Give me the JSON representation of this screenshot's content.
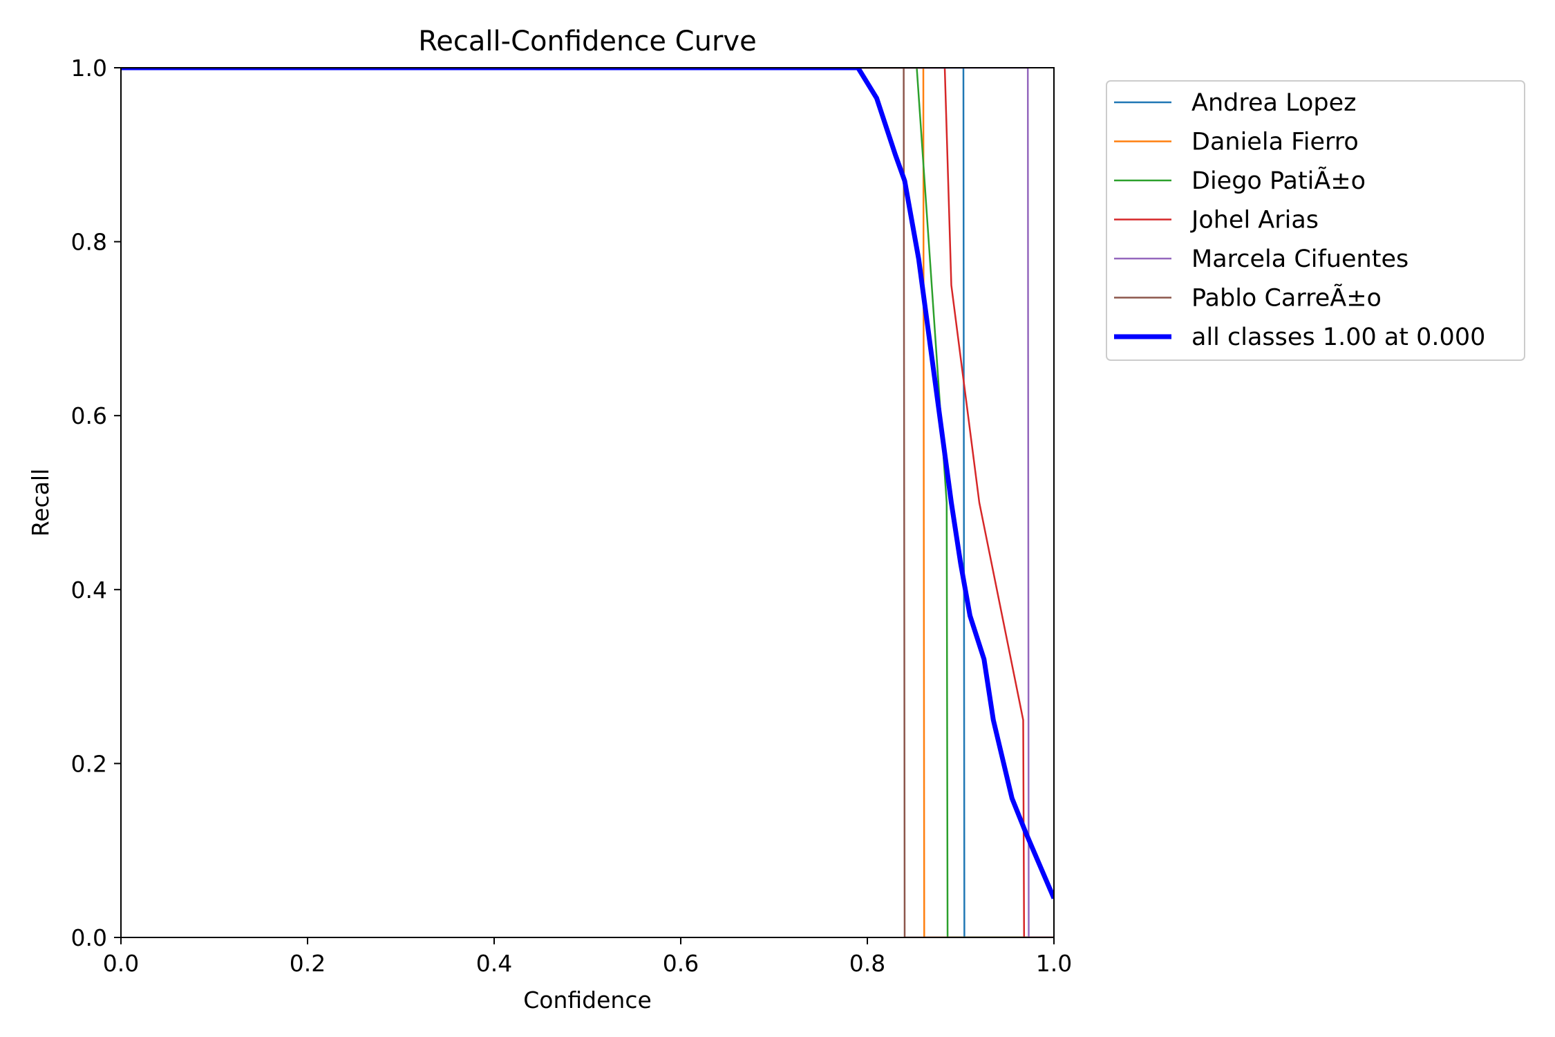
{
  "chart_data": {
    "type": "line",
    "title": "Recall-Confidence Curve",
    "xlabel": "Confidence",
    "ylabel": "Recall",
    "xlim": [
      0,
      1
    ],
    "ylim": [
      0,
      1
    ],
    "xticks": [
      0.0,
      0.2,
      0.4,
      0.6,
      0.8,
      1.0
    ],
    "yticks": [
      0.0,
      0.2,
      0.4,
      0.6,
      0.8,
      1.0
    ],
    "xtick_labels": [
      "0.0",
      "0.2",
      "0.4",
      "0.6",
      "0.8",
      "1.0"
    ],
    "ytick_labels": [
      "0.0",
      "0.2",
      "0.4",
      "0.6",
      "0.8",
      "1.0"
    ],
    "grid": false,
    "legend_position": "outside-upper-right",
    "series": [
      {
        "name": "Andrea Lopez",
        "color": "#1f77b4",
        "width": 2.5,
        "x": [
          0,
          0.903,
          0.904,
          1.0
        ],
        "y": [
          1,
          1,
          0,
          0
        ]
      },
      {
        "name": "Daniela Fierro",
        "color": "#ff7f0e",
        "width": 2.5,
        "x": [
          0,
          0.86,
          0.861,
          1.0
        ],
        "y": [
          1,
          1,
          0,
          0
        ]
      },
      {
        "name": "Diego PatiÃ±o",
        "color": "#2ca02c",
        "width": 2.5,
        "x": [
          0,
          0.853,
          0.885,
          0.886,
          1.0
        ],
        "y": [
          1,
          1,
          0.5,
          0,
          0
        ]
      },
      {
        "name": "Johel Arias",
        "color": "#d62728",
        "width": 2.5,
        "x": [
          0,
          0.883,
          0.89,
          0.92,
          0.967,
          0.968,
          1.0
        ],
        "y": [
          1,
          1,
          0.75,
          0.5,
          0.25,
          0,
          0
        ]
      },
      {
        "name": "Marcela Cifuentes",
        "color": "#9467bd",
        "width": 2.5,
        "x": [
          0,
          0.972,
          0.973,
          1.0
        ],
        "y": [
          1,
          1,
          0,
          0
        ]
      },
      {
        "name": "Pablo CarreÃ±o",
        "color": "#8c564b",
        "width": 2.5,
        "x": [
          0,
          0.839,
          0.84,
          1.0
        ],
        "y": [
          1,
          1,
          0,
          0
        ]
      },
      {
        "name": "all classes 1.00 at 0.000",
        "color": "#0000ff",
        "width": 7,
        "x": [
          0,
          0.79,
          0.81,
          0.83,
          0.84,
          0.855,
          0.87,
          0.88,
          0.89,
          0.9,
          0.91,
          0.925,
          0.935,
          0.955,
          0.97,
          1.0
        ],
        "y": [
          1,
          1,
          0.965,
          0.9,
          0.87,
          0.78,
          0.66,
          0.58,
          0.5,
          0.43,
          0.37,
          0.32,
          0.25,
          0.16,
          0.12,
          0.045
        ]
      }
    ]
  }
}
